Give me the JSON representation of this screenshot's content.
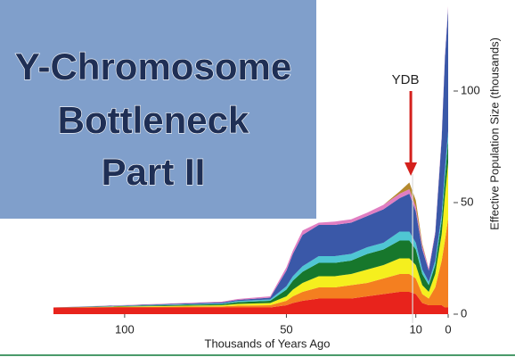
{
  "chart_data": {
    "type": "stacked_area",
    "title": [
      "Y-Chromosome",
      "Bottleneck",
      "Part II"
    ],
    "xlabel": "Thousands of Years Ago",
    "ylabel": "Effective Population Size (thousands)",
    "x": [
      122,
      70,
      65,
      55,
      50,
      48,
      45,
      40,
      35,
      30,
      25,
      20,
      15,
      12,
      10,
      8,
      6,
      4,
      2,
      1,
      0
    ],
    "series": [
      {
        "color": "#e8231c",
        "values": [
          3,
          3,
          3,
          3,
          4,
          5,
          6,
          7,
          7,
          7,
          8,
          9,
          10,
          10,
          9,
          5,
          4,
          4,
          4,
          3,
          3
        ]
      },
      {
        "color": "#f47f20",
        "values": [
          0,
          0.5,
          0.8,
          1,
          2,
          3,
          4,
          5,
          5,
          6,
          6,
          7,
          8,
          8,
          7,
          4,
          3,
          8,
          20,
          30,
          40
        ]
      },
      {
        "color": "#f5ef1e",
        "values": [
          0,
          0.5,
          0.8,
          1,
          2,
          3,
          4,
          5,
          5,
          5,
          6,
          6,
          7,
          7,
          6,
          4,
          3,
          6,
          12,
          20,
          25
        ]
      },
      {
        "color": "#17772c",
        "values": [
          0,
          0.5,
          0.8,
          1,
          3,
          4,
          5,
          6,
          6,
          6,
          7,
          7,
          8,
          8,
          7,
          5,
          3,
          4,
          6,
          8,
          10
        ]
      },
      {
        "color": "#4fc6d3",
        "values": [
          0,
          0.3,
          0.5,
          0.6,
          1.5,
          2,
          2.5,
          3,
          3,
          3,
          3,
          3,
          4,
          4,
          3,
          2,
          1.5,
          2,
          3,
          4,
          4
        ]
      },
      {
        "color": "#3a58a8",
        "values": [
          0,
          0.5,
          0.5,
          0.8,
          7,
          10,
          14,
          14,
          14,
          14,
          14,
          15,
          15,
          17,
          14,
          9,
          5,
          12,
          34,
          50,
          55
        ]
      },
      {
        "color": "#e07ec2",
        "values": [
          0,
          0.3,
          0.4,
          0.6,
          1.5,
          1.5,
          2,
          1,
          1.5,
          1.5,
          1.5,
          2,
          2,
          2,
          2,
          1.5,
          1,
          1,
          1,
          1,
          1
        ]
      },
      {
        "color": "#b58a2e",
        "values": [
          0,
          0,
          0,
          0,
          0,
          0,
          0,
          0,
          0,
          0,
          0,
          0,
          1,
          3,
          3,
          1,
          0,
          0,
          0,
          0,
          0
        ]
      }
    ],
    "xlim": [
      122,
      0
    ],
    "xticks": [
      100,
      50,
      10,
      0
    ],
    "ylim": [
      0,
      140
    ],
    "yticks": [
      0,
      50,
      100
    ],
    "annotations": [
      {
        "text": "YDB",
        "x": 11
      }
    ]
  }
}
